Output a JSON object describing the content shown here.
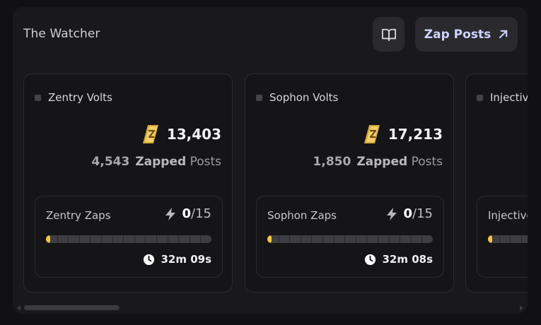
{
  "header": {
    "title": "The Watcher",
    "guide_icon": "book-open-icon",
    "zap_label": "Zap Posts",
    "zap_icon": "arrow-up-right-icon"
  },
  "colors": {
    "accent": "#cfd2ff",
    "progress_fill": "#f2c544",
    "coin_gold": "#e3b23c"
  },
  "cards": [
    {
      "name": "Zentry Volts",
      "volts": "13,403",
      "zapped_count": "4,543",
      "zapped_word": "Zapped",
      "posts_word": "Posts",
      "zaps_label": "Zentry Zaps",
      "progress_current": "0",
      "progress_sep": "/15",
      "progress_fraction": 0.02,
      "timer": "32m 09s"
    },
    {
      "name": "Sophon Volts",
      "volts": "17,213",
      "zapped_count": "1,850",
      "zapped_word": "Zapped",
      "posts_word": "Posts",
      "zaps_label": "Sophon Zaps",
      "progress_current": "0",
      "progress_sep": "/15",
      "progress_fraction": 0.02,
      "timer": "32m 08s"
    },
    {
      "name": "Injective Volts",
      "volts": "",
      "zapped_count": "",
      "zapped_word": "",
      "posts_word": "",
      "zaps_label": "Injective Zaps",
      "progress_current": "",
      "progress_sep": "",
      "progress_fraction": 0.02,
      "timer": ""
    }
  ]
}
